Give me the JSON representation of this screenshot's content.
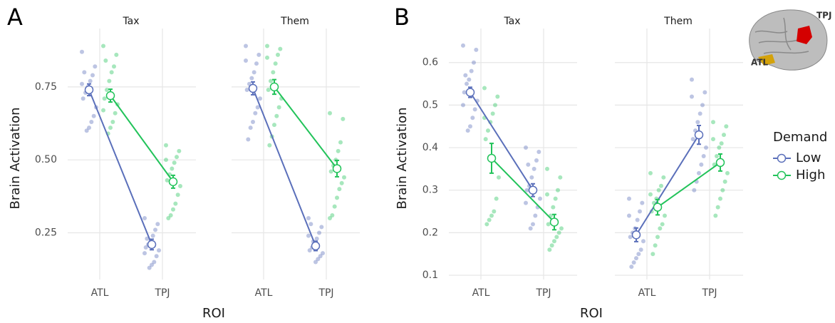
{
  "chart_data": [
    {
      "type": "line",
      "panel_label": "A",
      "y_label": "Brain Activation",
      "x_label": "ROI",
      "facets": [
        "Tax",
        "Them"
      ],
      "categories": [
        "ATL",
        "TPJ"
      ],
      "ylim": [
        0.09,
        0.95
      ],
      "yticks": [
        0.25,
        {
          "value": 0.5,
          "label": "0.50"
        },
        0.75
      ],
      "grid": true,
      "series": [
        {
          "color": "#5a6fba",
          "values": [
            [
              0.74,
              0.21
            ],
            [
              0.745,
              0.205
            ]
          ],
          "errors": [
            [
              0.02,
              0.018
            ],
            [
              0.022,
              0.016
            ]
          ],
          "points": [
            [
              [
                0.87,
                0.82,
                0.79,
                0.77,
                0.75,
                0.73,
                0.71,
                0.68,
                0.65,
                0.63,
                0.61,
                0.6,
                0.8,
                0.76
              ],
              [
                0.3,
                0.28,
                0.26,
                0.24,
                0.22,
                0.21,
                0.2,
                0.19,
                0.17,
                0.15,
                0.14,
                0.13,
                0.23,
                0.18
              ]
            ],
            [
              [
                0.89,
                0.86,
                0.83,
                0.8,
                0.78,
                0.76,
                0.74,
                0.71,
                0.68,
                0.66,
                0.63,
                0.61,
                0.57,
                0.84
              ],
              [
                0.3,
                0.27,
                0.25,
                0.23,
                0.21,
                0.2,
                0.19,
                0.18,
                0.17,
                0.16,
                0.15,
                0.22,
                0.28,
                0.24
              ]
            ]
          ]
        },
        {
          "color": "#22c35a",
          "values": [
            [
              0.72,
              0.425
            ],
            [
              0.75,
              0.47
            ]
          ],
          "errors": [
            [
              0.022,
              0.022
            ],
            [
              0.025,
              0.028
            ]
          ],
          "points": [
            [
              [
                0.89,
                0.86,
                0.82,
                0.8,
                0.77,
                0.74,
                0.71,
                0.69,
                0.66,
                0.63,
                0.61,
                0.59,
                0.84,
                0.67
              ],
              [
                0.55,
                0.53,
                0.51,
                0.49,
                0.47,
                0.45,
                0.43,
                0.41,
                0.38,
                0.35,
                0.33,
                0.31,
                0.3,
                0.5
              ]
            ],
            [
              [
                0.89,
                0.88,
                0.86,
                0.83,
                0.8,
                0.77,
                0.74,
                0.71,
                0.68,
                0.65,
                0.62,
                0.58,
                0.55,
                0.85
              ],
              [
                0.66,
                0.64,
                0.56,
                0.53,
                0.5,
                0.48,
                0.46,
                0.44,
                0.42,
                0.4,
                0.37,
                0.34,
                0.31,
                0.3
              ]
            ]
          ]
        }
      ]
    },
    {
      "type": "line",
      "panel_label": "B",
      "y_label": "Brain Activation",
      "x_label": "ROI",
      "facets": [
        "Tax",
        "Them"
      ],
      "categories": [
        "ATL",
        "TPJ"
      ],
      "ylim": [
        0.09,
        0.68
      ],
      "yticks": [
        0.1,
        0.2,
        0.3,
        0.4,
        0.5,
        0.6
      ],
      "grid": true,
      "legend_title": "Demand",
      "legend": "right",
      "annotations": [
        "TPJ",
        "ATL"
      ],
      "series": [
        {
          "name": "Low",
          "color": "#5a6fba",
          "values": [
            [
              0.53,
              0.3
            ],
            [
              0.195,
              0.43
            ]
          ],
          "errors": [
            [
              0.012,
              0.015
            ],
            [
              0.016,
              0.022
            ]
          ],
          "points": [
            [
              [
                0.64,
                0.63,
                0.6,
                0.58,
                0.56,
                0.55,
                0.53,
                0.51,
                0.49,
                0.47,
                0.45,
                0.44,
                0.57,
                0.5
              ],
              [
                0.4,
                0.39,
                0.37,
                0.35,
                0.33,
                0.31,
                0.3,
                0.28,
                0.26,
                0.24,
                0.22,
                0.21,
                0.36,
                0.27
              ]
            ],
            [
              [
                0.28,
                0.27,
                0.25,
                0.23,
                0.21,
                0.2,
                0.19,
                0.18,
                0.16,
                0.15,
                0.14,
                0.13,
                0.12,
                0.24
              ],
              [
                0.56,
                0.53,
                0.5,
                0.48,
                0.46,
                0.44,
                0.42,
                0.4,
                0.38,
                0.36,
                0.34,
                0.32,
                0.3,
                0.52
              ]
            ]
          ]
        },
        {
          "name": "High",
          "color": "#22c35a",
          "values": [
            [
              0.375,
              0.225
            ],
            [
              0.26,
              0.365
            ]
          ],
          "errors": [
            [
              0.035,
              0.018
            ],
            [
              0.018,
              0.02
            ]
          ],
          "points": [
            [
              [
                0.54,
                0.52,
                0.5,
                0.48,
                0.46,
                0.44,
                0.42,
                0.33,
                0.28,
                0.25,
                0.24,
                0.23,
                0.22,
                0.47
              ],
              [
                0.35,
                0.33,
                0.3,
                0.28,
                0.26,
                0.24,
                0.22,
                0.21,
                0.2,
                0.19,
                0.18,
                0.17,
                0.16,
                0.29
              ]
            ],
            [
              [
                0.34,
                0.33,
                0.31,
                0.3,
                0.28,
                0.27,
                0.25,
                0.24,
                0.22,
                0.21,
                0.19,
                0.17,
                0.15,
                0.29
              ],
              [
                0.46,
                0.45,
                0.43,
                0.41,
                0.4,
                0.38,
                0.36,
                0.34,
                0.32,
                0.3,
                0.28,
                0.26,
                0.24,
                0.42
              ]
            ]
          ]
        }
      ]
    }
  ]
}
